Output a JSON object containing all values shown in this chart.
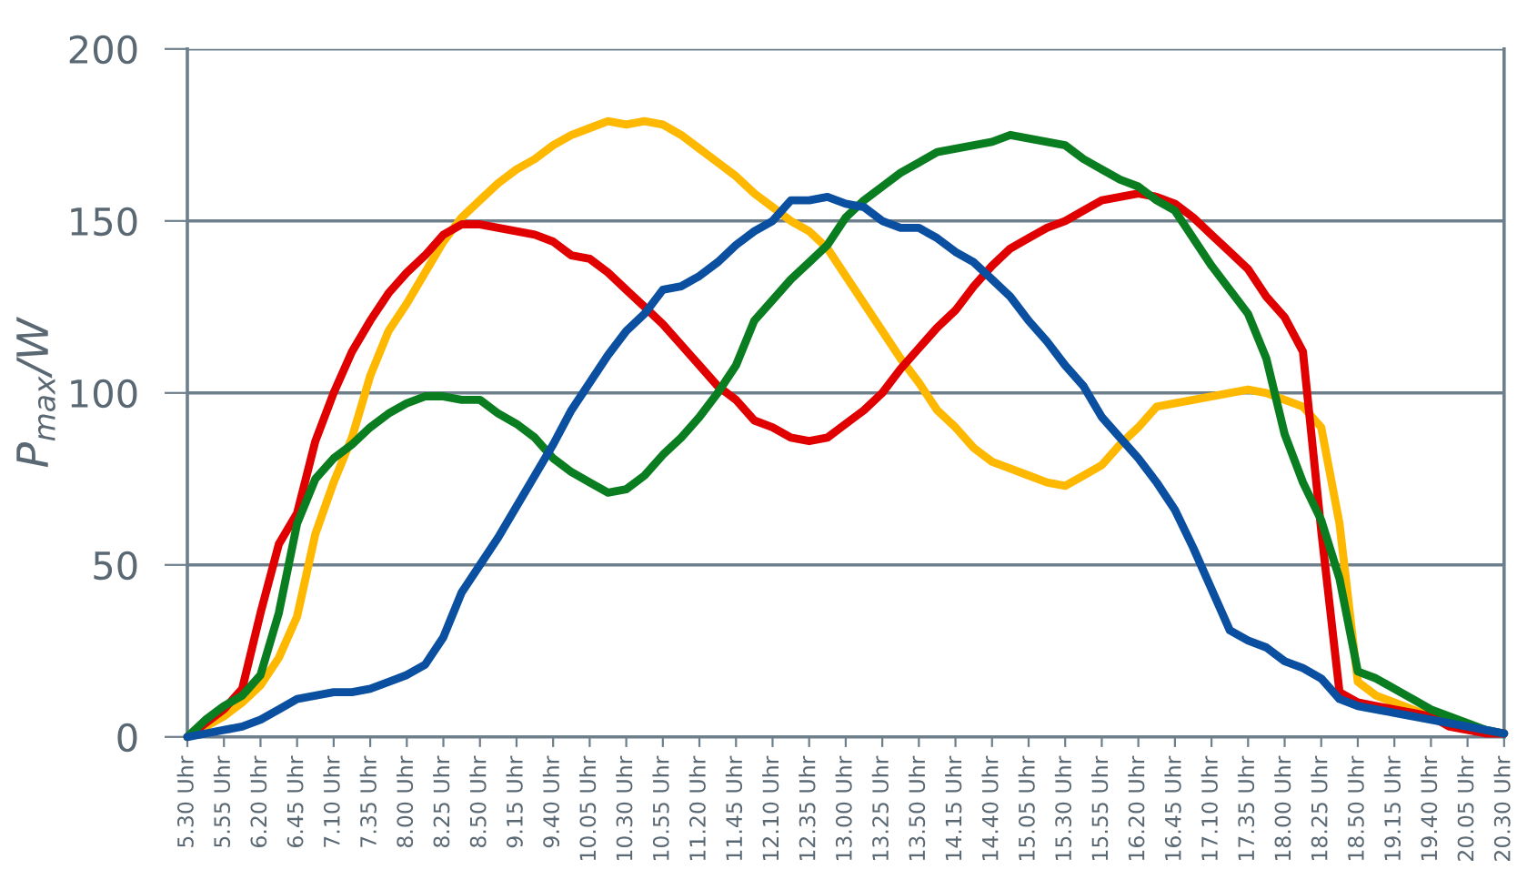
{
  "chart_data": {
    "type": "line",
    "ylabel": "P$_{max}$/W",
    "ylim": [
      0,
      200
    ],
    "yticks": [
      0,
      50,
      100,
      150,
      200
    ],
    "categories": [
      "5.30 Uhr",
      null,
      "5.55 Uhr",
      null,
      "6.20 Uhr",
      null,
      "6.45 Uhr",
      null,
      "7.10 Uhr",
      null,
      "7.35 Uhr",
      null,
      "8.00 Uhr",
      null,
      "8.25 Uhr",
      null,
      "8.50 Uhr",
      null,
      "9.15 Uhr",
      null,
      "9.40 Uhr",
      null,
      "10.05 Uhr",
      null,
      "10.30 Uhr",
      null,
      "10.55 Uhr",
      null,
      "11.20 Uhr",
      null,
      "11.45 Uhr",
      null,
      "12.10 Uhr",
      null,
      "12.35 Uhr",
      null,
      "13.00 Uhr",
      null,
      "13.25 Uhr",
      null,
      "13.50 Uhr",
      null,
      "14.15 Uhr",
      null,
      "14.40 Uhr",
      null,
      "15.05 Uhr",
      null,
      "15.30 Uhr",
      null,
      "15.55 Uhr",
      null,
      "16.20 Uhr",
      null,
      "16.45 Uhr",
      null,
      "17.10 Uhr",
      null,
      "17.35 Uhr",
      null,
      "18.00 Uhr",
      null,
      "18.25 Uhr",
      null,
      "18.50 Uhr",
      null,
      "19.15 Uhr",
      null,
      "19.40 Uhr",
      null,
      "20.05 Uhr",
      null,
      "20.30 Uhr"
    ],
    "grid": "y",
    "marker": "none",
    "line_style": "solid",
    "series": [
      {
        "color": "#ffb800",
        "values": [
          0,
          3,
          6,
          10,
          15,
          23,
          35,
          59,
          74,
          87,
          105,
          118,
          126,
          135,
          144,
          151,
          156,
          161,
          165,
          168,
          172,
          175,
          177,
          179,
          178,
          179,
          178,
          175,
          171,
          167,
          163,
          158,
          154,
          150,
          147,
          142,
          134,
          126,
          118,
          110,
          103,
          95,
          90,
          84,
          80,
          78,
          76,
          74,
          73,
          76,
          79,
          85,
          90,
          96,
          97,
          98,
          99,
          100,
          101,
          100,
          98,
          96,
          90,
          62,
          16,
          12,
          10,
          8,
          6,
          4,
          null,
          null,
          null
        ]
      },
      {
        "color": "#e00000",
        "values": [
          0,
          4,
          8,
          14,
          36,
          56,
          65,
          86,
          100,
          112,
          121,
          129,
          135,
          140,
          146,
          149,
          149,
          148,
          147,
          146,
          144,
          140,
          139,
          135,
          130,
          125,
          120,
          114,
          108,
          102,
          98,
          92,
          90,
          87,
          86,
          87,
          91,
          95,
          100,
          107,
          113,
          119,
          124,
          131,
          137,
          142,
          145,
          148,
          150,
          153,
          156,
          157,
          158,
          157,
          155,
          151,
          146,
          141,
          136,
          128,
          122,
          112,
          60,
          13,
          10,
          9,
          8,
          7,
          6,
          3,
          2,
          1,
          1
        ]
      },
      {
        "color": "#0b7d21",
        "values": [
          0,
          5,
          9,
          12,
          18,
          36,
          62,
          75,
          81,
          85,
          90,
          94,
          97,
          99,
          99,
          98,
          98,
          94,
          91,
          87,
          81,
          77,
          74,
          71,
          72,
          76,
          82,
          87,
          93,
          100,
          108,
          121,
          127,
          133,
          138,
          143,
          151,
          156,
          160,
          164,
          167,
          170,
          171,
          172,
          173,
          175,
          174,
          173,
          172,
          168,
          165,
          162,
          160,
          156,
          153,
          145,
          137,
          130,
          123,
          110,
          88,
          74,
          63,
          46,
          19,
          17,
          14,
          11,
          8,
          6,
          4,
          2,
          1
        ]
      },
      {
        "color": "#0a4fa0",
        "values": [
          0,
          1,
          2,
          3,
          5,
          8,
          11,
          12,
          13,
          13,
          14,
          16,
          18,
          21,
          29,
          42,
          50,
          58,
          67,
          76,
          85,
          95,
          103,
          111,
          118,
          123,
          130,
          131,
          134,
          138,
          143,
          147,
          150,
          156,
          156,
          157,
          155,
          154,
          150,
          148,
          148,
          145,
          141,
          138,
          133,
          128,
          121,
          115,
          108,
          102,
          93,
          87,
          81,
          74,
          66,
          55,
          43,
          31,
          28,
          26,
          22,
          20,
          17,
          11,
          9,
          8,
          7,
          6,
          5,
          4,
          3,
          2,
          1
        ]
      }
    ]
  }
}
